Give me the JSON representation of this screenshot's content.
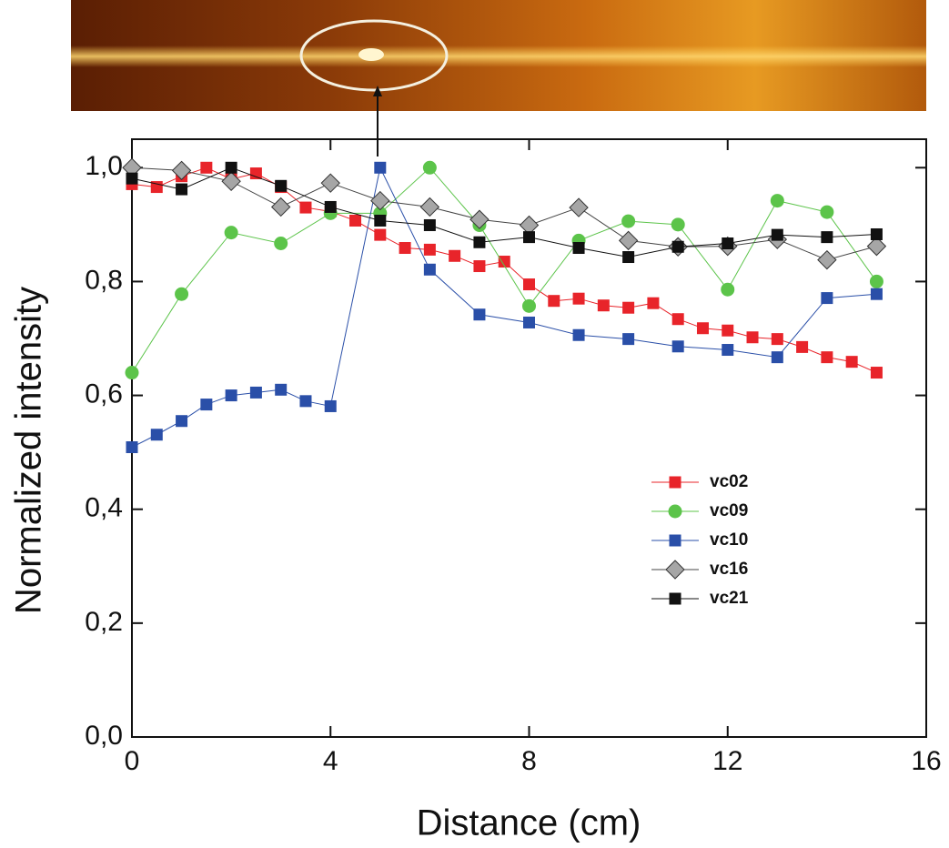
{
  "chart_data": {
    "type": "line",
    "xlabel": "Distance (cm)",
    "ylabel": "Normalized intensity",
    "xlim": [
      0,
      16
    ],
    "xticks": [
      0,
      4,
      8,
      12,
      16
    ],
    "ylim": [
      0,
      1.05
    ],
    "yticks": [
      {
        "value": 0,
        "label": "0,0"
      },
      {
        "value": 0.2,
        "label": "0,2"
      },
      {
        "value": 0.4,
        "label": "0,4"
      },
      {
        "value": 0.6,
        "label": "0,6"
      },
      {
        "value": 0.8,
        "label": "0,8"
      },
      {
        "value": 1.0,
        "label": "1,0"
      }
    ],
    "series": [
      {
        "name": "vc02",
        "color": "#e8242a",
        "marker": "square",
        "x": [
          0,
          0.5,
          1,
          1.5,
          2,
          2.5,
          3,
          3.5,
          4,
          4.5,
          5,
          5.5,
          6,
          6.5,
          7,
          7.5,
          8,
          8.5,
          9,
          9.5,
          10,
          10.5,
          11,
          11.5,
          12,
          12.5,
          13,
          13.5,
          14,
          14.5,
          15
        ],
        "values": [
          0.971,
          0.966,
          0.985,
          1.0,
          0.98,
          0.99,
          0.966,
          0.93,
          0.923,
          0.907,
          0.882,
          0.859,
          0.856,
          0.845,
          0.827,
          0.835,
          0.795,
          0.766,
          0.77,
          0.758,
          0.754,
          0.762,
          0.734,
          0.718,
          0.714,
          0.702,
          0.699,
          0.685,
          0.667,
          0.659,
          0.64
        ]
      },
      {
        "name": "vc09",
        "color": "#5cc44a",
        "marker": "circle",
        "x": [
          0,
          1,
          2,
          3,
          4,
          5,
          6,
          7,
          8,
          9,
          10,
          11,
          12,
          13,
          14,
          15
        ],
        "values": [
          0.64,
          0.778,
          0.886,
          0.867,
          0.92,
          0.92,
          1.0,
          0.899,
          0.757,
          0.872,
          0.906,
          0.9,
          0.786,
          0.942,
          0.922,
          0.8
        ]
      },
      {
        "name": "vc10",
        "color": "#2a4fa8",
        "marker": "square",
        "x": [
          0,
          0.5,
          1,
          1.5,
          2,
          2.5,
          3,
          3.5,
          4,
          5,
          6,
          7,
          8,
          9,
          10,
          11,
          12,
          13,
          14,
          15
        ],
        "values": [
          0.509,
          0.531,
          0.555,
          0.584,
          0.6,
          0.605,
          0.61,
          0.59,
          0.581,
          1.0,
          0.821,
          0.742,
          0.728,
          0.706,
          0.699,
          0.686,
          0.68,
          0.667,
          0.771,
          0.778
        ]
      },
      {
        "name": "vc16",
        "color": "#a6a6a6",
        "marker": "diamond",
        "x": [
          0,
          1,
          2,
          3,
          4,
          5,
          6,
          7,
          8,
          9,
          10,
          11,
          12,
          13,
          14,
          15
        ],
        "values": [
          1.0,
          0.995,
          0.976,
          0.931,
          0.973,
          0.942,
          0.931,
          0.909,
          0.899,
          0.93,
          0.872,
          0.861,
          0.862,
          0.874,
          0.838,
          0.862
        ]
      },
      {
        "name": "vc21",
        "color": "#111111",
        "marker": "square",
        "x": [
          0,
          1,
          2,
          3,
          4,
          5,
          6,
          7,
          8,
          9,
          10,
          11,
          12,
          13,
          14,
          15
        ],
        "values": [
          0.981,
          0.962,
          1.0,
          0.968,
          0.931,
          0.907,
          0.899,
          0.869,
          0.878,
          0.859,
          0.843,
          0.861,
          0.867,
          0.882,
          0.878,
          0.883
        ]
      }
    ]
  }
}
